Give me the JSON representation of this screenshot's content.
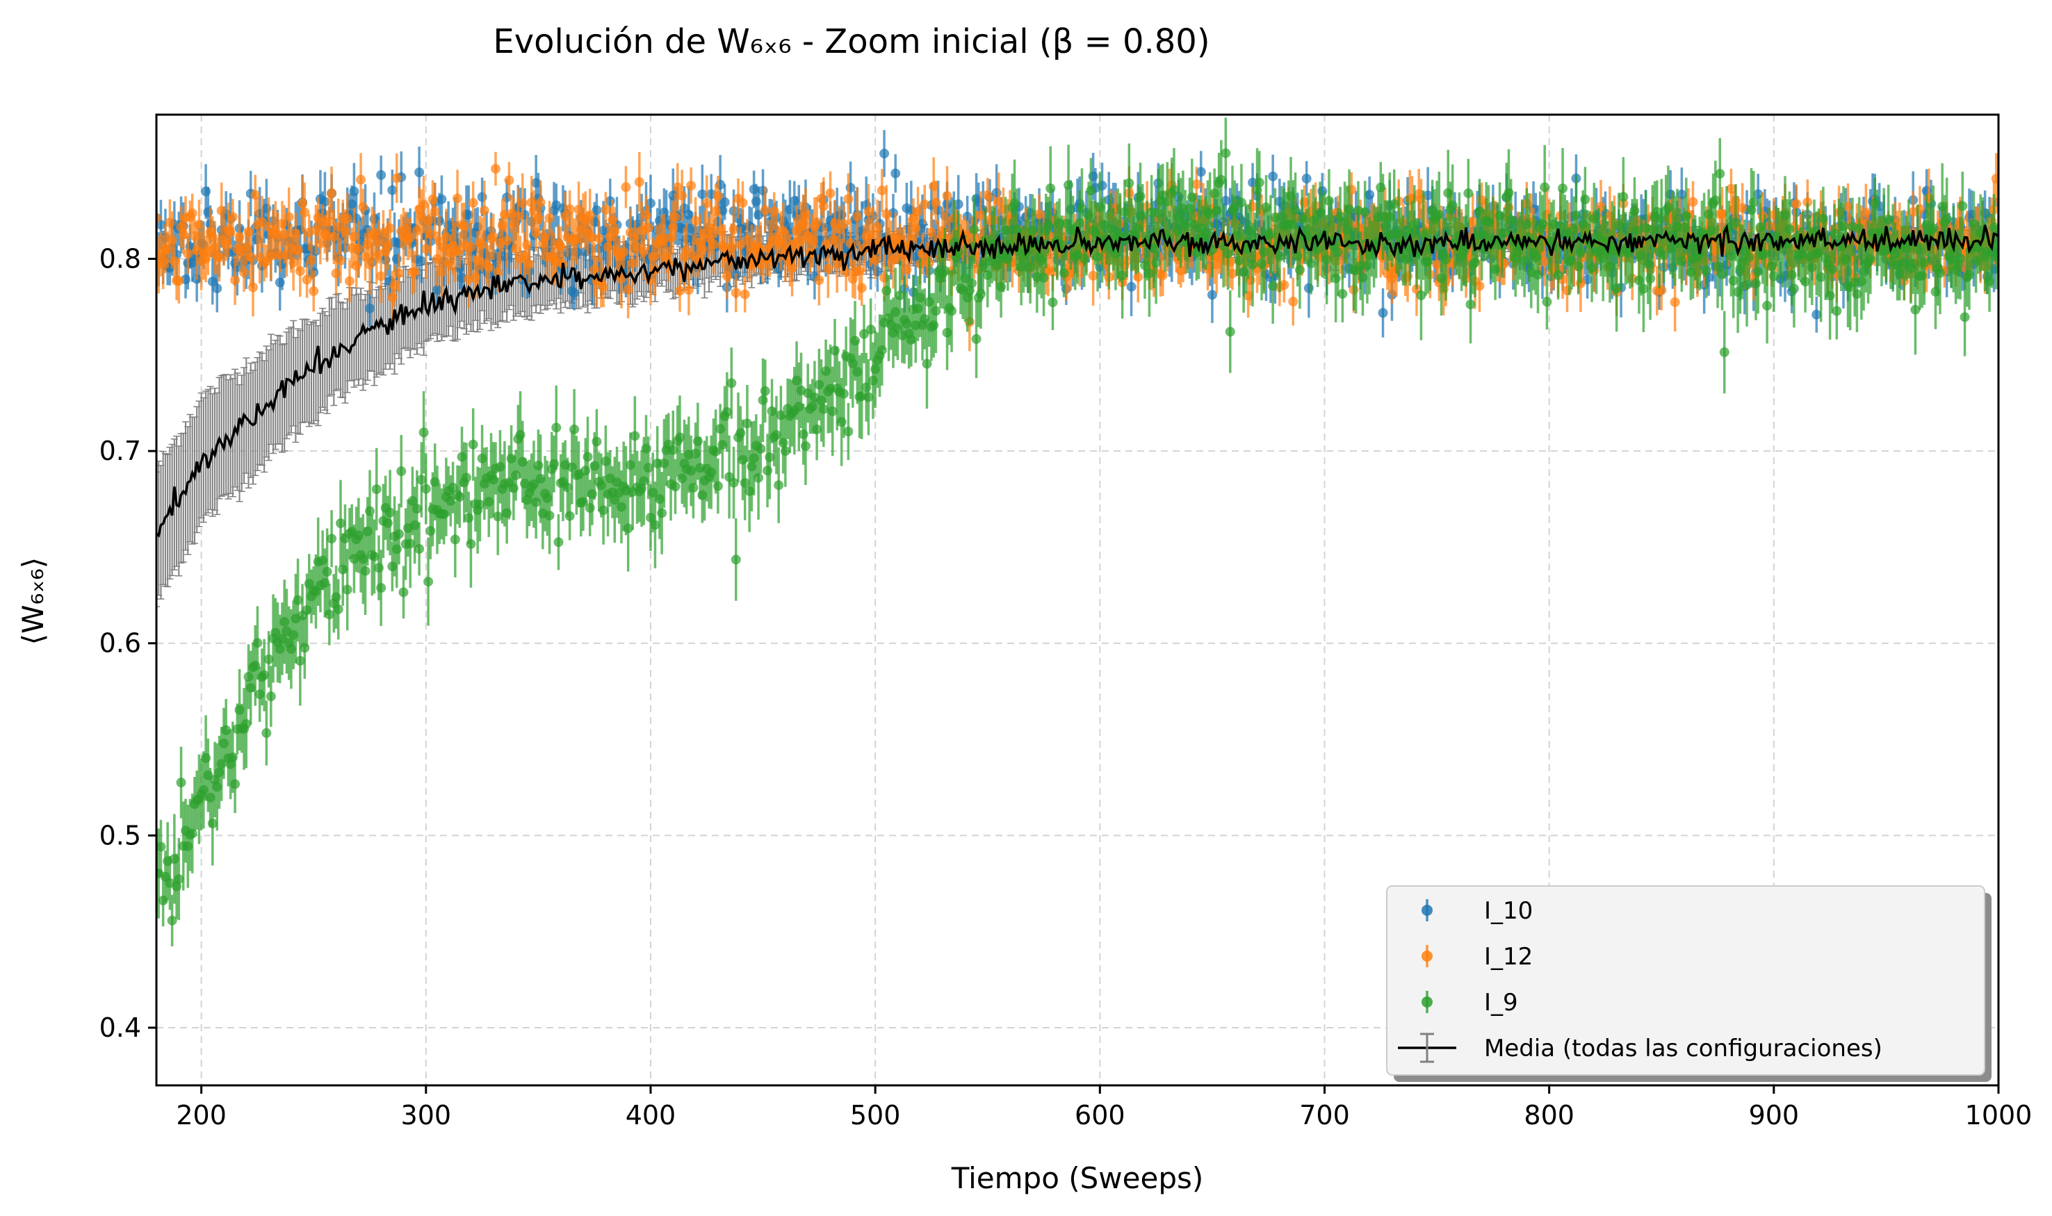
{
  "chart_data": {
    "type": "scatter",
    "title": "Evolución de W₆ₓ₆ - Zoom inicial (β = 0.80)",
    "xlabel": "Tiempo (Sweeps)",
    "ylabel": "⟨W₆ₓ₆⟩",
    "xlim": [
      180,
      1000
    ],
    "ylim": [
      0.37,
      0.875
    ],
    "x_ticks": [
      200,
      300,
      400,
      500,
      600,
      700,
      800,
      900,
      1000
    ],
    "y_ticks": [
      0.4,
      0.5,
      0.6,
      0.7,
      0.8
    ],
    "grid": true,
    "legend_position": "lower-right",
    "series": [
      {
        "name": "I_10",
        "color": "#1f77b4",
        "marker": "circle-with-errorbars",
        "x_range": [
          180,
          1000
        ],
        "trend": [
          [
            180,
            0.81
          ],
          [
            300,
            0.81
          ],
          [
            400,
            0.812
          ],
          [
            500,
            0.815
          ],
          [
            600,
            0.815
          ],
          [
            700,
            0.812
          ],
          [
            800,
            0.81
          ],
          [
            900,
            0.81
          ],
          [
            1000,
            0.81
          ]
        ],
        "noise": 0.012,
        "error": 0.012
      },
      {
        "name": "I_12",
        "color": "#ff7f0e",
        "marker": "circle-with-errorbars",
        "x_range": [
          180,
          1000
        ],
        "trend": [
          [
            180,
            0.808
          ],
          [
            300,
            0.81
          ],
          [
            400,
            0.81
          ],
          [
            500,
            0.81
          ],
          [
            600,
            0.808
          ],
          [
            700,
            0.808
          ],
          [
            800,
            0.808
          ],
          [
            900,
            0.81
          ],
          [
            1000,
            0.81
          ]
        ],
        "noise": 0.012,
        "error": 0.012
      },
      {
        "name": "I_9",
        "color": "#2ca02c",
        "marker": "circle-with-errorbars",
        "x_range": [
          180,
          1000
        ],
        "trend": [
          [
            180,
            0.47
          ],
          [
            200,
            0.52
          ],
          [
            220,
            0.565
          ],
          [
            240,
            0.605
          ],
          [
            260,
            0.635
          ],
          [
            280,
            0.66
          ],
          [
            300,
            0.675
          ],
          [
            320,
            0.682
          ],
          [
            340,
            0.685
          ],
          [
            360,
            0.685
          ],
          [
            380,
            0.683
          ],
          [
            400,
            0.685
          ],
          [
            420,
            0.69
          ],
          [
            440,
            0.7
          ],
          [
            460,
            0.715
          ],
          [
            480,
            0.735
          ],
          [
            500,
            0.755
          ],
          [
            520,
            0.775
          ],
          [
            540,
            0.79
          ],
          [
            560,
            0.805
          ],
          [
            600,
            0.815
          ],
          [
            650,
            0.818
          ],
          [
            700,
            0.815
          ],
          [
            800,
            0.81
          ],
          [
            900,
            0.806
          ],
          [
            1000,
            0.805
          ]
        ],
        "noise": 0.014,
        "error": 0.018
      },
      {
        "name": "Media (todas las configuraciones)",
        "color": "#000000",
        "error_color": "#808080",
        "marker": "line-with-errorbars",
        "x_range": [
          180,
          1000
        ],
        "trend": [
          [
            180,
            0.655
          ],
          [
            200,
            0.695
          ],
          [
            220,
            0.715
          ],
          [
            240,
            0.735
          ],
          [
            260,
            0.752
          ],
          [
            280,
            0.765
          ],
          [
            300,
            0.775
          ],
          [
            320,
            0.782
          ],
          [
            340,
            0.786
          ],
          [
            360,
            0.789
          ],
          [
            380,
            0.792
          ],
          [
            400,
            0.794
          ],
          [
            420,
            0.797
          ],
          [
            440,
            0.8
          ],
          [
            460,
            0.801
          ],
          [
            480,
            0.802
          ],
          [
            500,
            0.805
          ],
          [
            550,
            0.806
          ],
          [
            600,
            0.808
          ],
          [
            650,
            0.809
          ],
          [
            700,
            0.808
          ],
          [
            750,
            0.808
          ],
          [
            800,
            0.809
          ],
          [
            850,
            0.81
          ],
          [
            900,
            0.809
          ],
          [
            950,
            0.81
          ],
          [
            1000,
            0.81
          ]
        ],
        "noise": 0.003,
        "error_trend": [
          [
            180,
            0.035
          ],
          [
            220,
            0.03
          ],
          [
            260,
            0.025
          ],
          [
            300,
            0.02
          ],
          [
            350,
            0.015
          ],
          [
            400,
            0.012
          ],
          [
            450,
            0.01
          ],
          [
            500,
            0.008
          ],
          [
            550,
            0.006
          ],
          [
            600,
            0.004
          ],
          [
            1000,
            0.003
          ]
        ]
      }
    ]
  }
}
